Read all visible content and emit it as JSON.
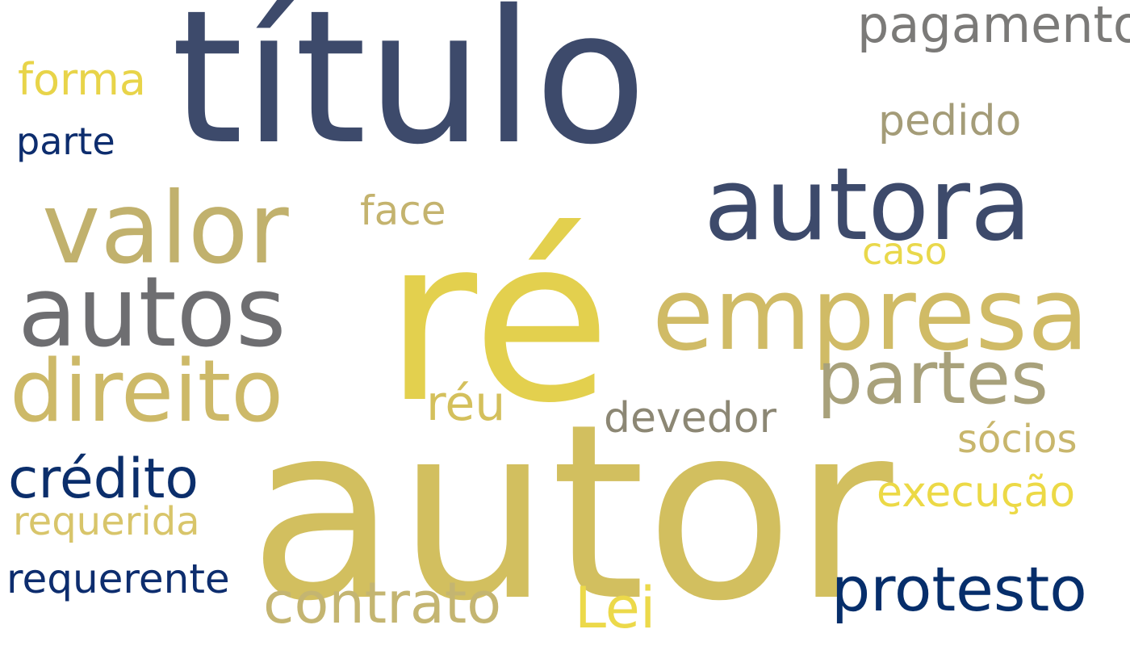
{
  "wordcloud": {
    "words": [
      {
        "text": "título",
        "color": "#3d4a6b"
      },
      {
        "text": "ré",
        "color": "#e3d04e"
      },
      {
        "text": "autor",
        "color": "#d2bf5f"
      },
      {
        "text": "autora",
        "color": "#3d4a6b"
      },
      {
        "text": "empresa",
        "color": "#d0bb66"
      },
      {
        "text": "valor",
        "color": "#c1b16d"
      },
      {
        "text": "autos",
        "color": "#6e6e71"
      },
      {
        "text": "direito",
        "color": "#cdb968"
      },
      {
        "text": "partes",
        "color": "#a8a17b"
      },
      {
        "text": "pagamento",
        "color": "#7b7a78"
      },
      {
        "text": "forma",
        "color": "#e8d449"
      },
      {
        "text": "parte",
        "color": "#0d2d6e"
      },
      {
        "text": "pedido",
        "color": "#a49c78"
      },
      {
        "text": "face",
        "color": "#c4b36e"
      },
      {
        "text": "caso",
        "color": "#e9d84b"
      },
      {
        "text": "réu",
        "color": "#d4c05c"
      },
      {
        "text": "devedor",
        "color": "#8c8774"
      },
      {
        "text": "sócios",
        "color": "#c8b66c"
      },
      {
        "text": "crédito",
        "color": "#0b2e6b"
      },
      {
        "text": "execução",
        "color": "#ecd946"
      },
      {
        "text": "requerida",
        "color": "#d8c56a"
      },
      {
        "text": "requerente",
        "color": "#0d2d6e"
      },
      {
        "text": "contrato",
        "color": "#c4b571"
      },
      {
        "text": "Lei",
        "color": "#ecd94a"
      },
      {
        "text": "protesto",
        "color": "#062e6b"
      }
    ]
  }
}
